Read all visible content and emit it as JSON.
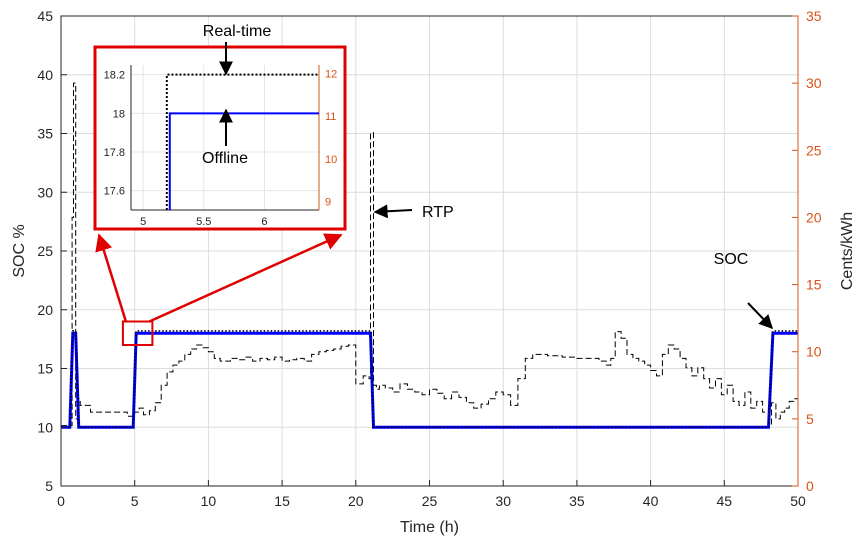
{
  "chart_data": {
    "type": "line",
    "xlabel": "Time (h)",
    "ylabel": "SOC %",
    "y2label": "Cents/kWh",
    "xlim": [
      0,
      50
    ],
    "ylim": [
      5,
      45
    ],
    "y2lim": [
      0,
      35
    ],
    "xticks": [
      "0",
      "5",
      "10",
      "15",
      "20",
      "25",
      "30",
      "35",
      "40",
      "45",
      "50"
    ],
    "yticks": [
      "5",
      "10",
      "15",
      "20",
      "25",
      "30",
      "35",
      "40",
      "45"
    ],
    "y2ticks": [
      "0",
      "5",
      "10",
      "15",
      "20",
      "25",
      "30",
      "35"
    ],
    "grid": true,
    "colors": {
      "soc": "#0000ff",
      "realtime": "#000000",
      "rtp": "#000000",
      "right_axis": "#d95319",
      "zoom_box": "#e00000"
    },
    "series": [
      {
        "name": "Offline",
        "axis": "left",
        "style": "solid",
        "x": [
          0,
          0.6,
          0.8,
          1.0,
          1.2,
          1.4,
          4.9,
          5.1,
          21.0,
          21.2,
          48.0,
          48.3,
          50
        ],
        "y": [
          10,
          10,
          18,
          18,
          10,
          10,
          10,
          18,
          18,
          10,
          10,
          18,
          18
        ]
      },
      {
        "name": "Real-time",
        "axis": "left",
        "style": "dotted",
        "x": [
          0,
          0.6,
          0.8,
          1.0,
          1.2,
          1.4,
          4.9,
          5.1,
          21.0,
          21.2,
          48.0,
          48.3,
          50
        ],
        "y": [
          10,
          10,
          18.2,
          18.2,
          10,
          10,
          10,
          18.2,
          18.2,
          10,
          10,
          18.2,
          18.2
        ]
      },
      {
        "name": "RTP",
        "axis": "right",
        "style": "dashed",
        "x": [
          0,
          0.6,
          0.75,
          0.85,
          1.0,
          1.15,
          1.3,
          2.0,
          2.5,
          3.0,
          3.5,
          4.0,
          4.5,
          5.0,
          5.3,
          5.6,
          6.0,
          6.4,
          6.8,
          7.2,
          7.6,
          8.0,
          8.4,
          8.8,
          9.2,
          9.6,
          10.0,
          10.4,
          10.8,
          11.5,
          12.0,
          12.5,
          13.0,
          13.5,
          14.0,
          14.5,
          15.0,
          15.5,
          16.0,
          16.5,
          17.0,
          17.5,
          18.0,
          18.5,
          19.0,
          19.5,
          20.0,
          20.5,
          20.9,
          21.0,
          21.2,
          21.4,
          21.6,
          22.0,
          22.5,
          23.0,
          23.5,
          24.0,
          24.5,
          25.0,
          25.5,
          26.0,
          26.5,
          27.0,
          27.5,
          28.0,
          28.5,
          29.0,
          29.5,
          30.0,
          30.5,
          31.0,
          31.5,
          32.0,
          33.0,
          34.0,
          35.0,
          36.0,
          36.5,
          37.0,
          37.3,
          37.6,
          38.0,
          38.4,
          38.8,
          39.2,
          39.6,
          40.0,
          40.4,
          40.8,
          41.2,
          41.6,
          42.0,
          42.4,
          42.8,
          43.2,
          43.6,
          44.0,
          44.4,
          44.8,
          45.2,
          45.6,
          46.0,
          46.4,
          46.8,
          47.2,
          47.6,
          48.0,
          48.2,
          48.5,
          48.8,
          49.1,
          49.4,
          49.7,
          50.0
        ],
        "y": [
          4.5,
          4.5,
          20,
          30,
          5,
          6.5,
          6,
          5.5,
          5.5,
          5.5,
          5.5,
          5.5,
          5.2,
          5.5,
          5.8,
          5.3,
          5.6,
          6.2,
          7.5,
          8.5,
          9,
          9.3,
          9.8,
          10.2,
          10.5,
          10.3,
          10,
          9.5,
          9.3,
          9.5,
          9.4,
          9.6,
          9.3,
          9.5,
          9.4,
          9.6,
          9.3,
          9.4,
          9.5,
          9.3,
          9.8,
          10.0,
          10.1,
          10.2,
          10.4,
          10.5,
          7.6,
          8.2,
          8.0,
          26.3,
          7.5,
          7.2,
          7.5,
          7.3,
          7.0,
          7.6,
          7.2,
          7.0,
          6.8,
          7.2,
          6.9,
          6.5,
          7.0,
          6.6,
          6.2,
          5.8,
          6.1,
          6.5,
          7.0,
          6.8,
          6.0,
          8.0,
          9.5,
          9.8,
          9.7,
          9.6,
          9.5,
          9.5,
          9.3,
          9.0,
          9.5,
          11.5,
          11.0,
          9.8,
          9.5,
          9.3,
          9.0,
          8.6,
          8.2,
          9.8,
          10.5,
          10.2,
          9.5,
          8.8,
          8.2,
          8.8,
          8.0,
          7.3,
          8.0,
          6.8,
          7.5,
          6.3,
          6.0,
          7.0,
          5.8,
          6.3,
          5.5,
          4.5,
          6.2,
          5.0,
          5.5,
          5.8,
          6.3,
          6.5,
          6.8
        ]
      }
    ],
    "inset": {
      "xlim": [
        4.9,
        6.45
      ],
      "ylim": [
        17.5,
        18.25
      ],
      "y2lim": [
        8.8,
        12.2
      ],
      "xticks": [
        "5",
        "5.5",
        "6"
      ],
      "yticks": [
        "17.6",
        "17.8",
        "18",
        "18.2"
      ],
      "y2ticks": [
        "9",
        "10",
        "11",
        "12"
      ]
    },
    "annotations": {
      "realtime": "Real-time",
      "offline": "Offline",
      "rtp": "RTP",
      "soc": "SOC"
    }
  }
}
